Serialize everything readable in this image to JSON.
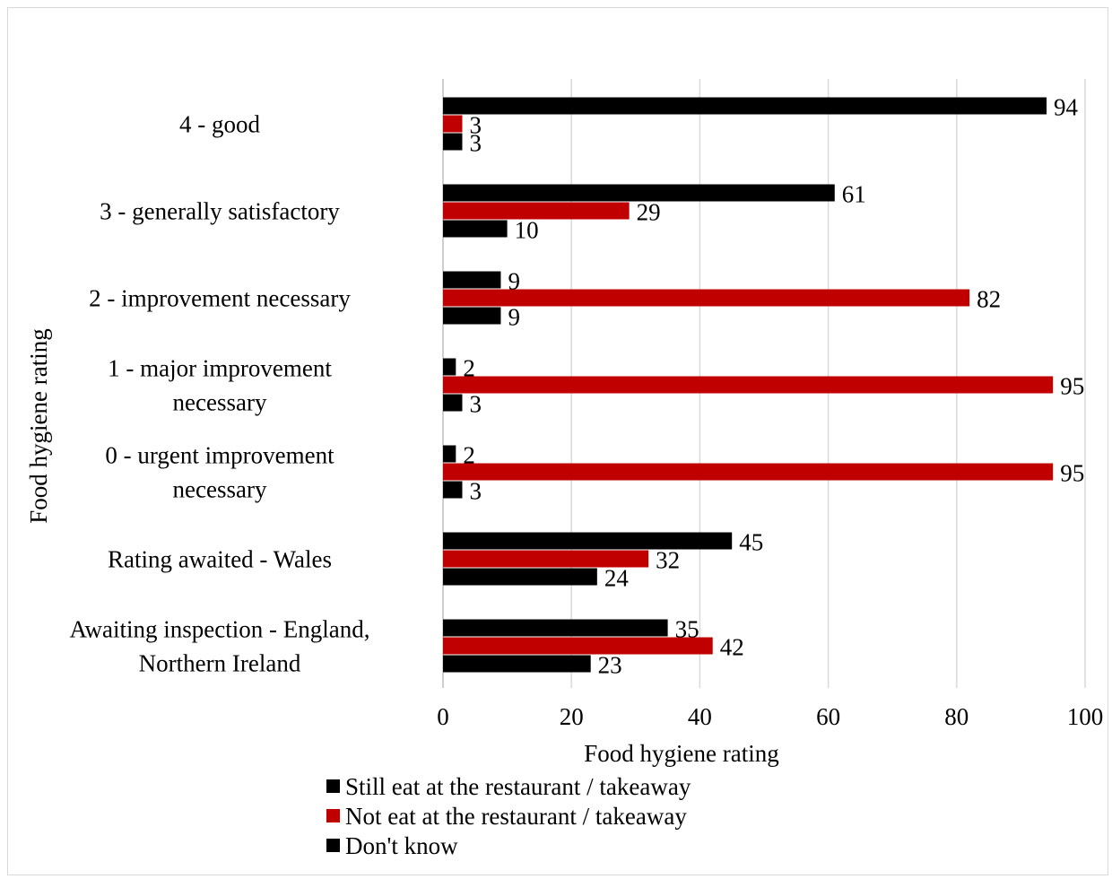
{
  "chart_data": {
    "type": "bar",
    "orientation": "horizontal",
    "categories": [
      [
        "4 - good"
      ],
      [
        "3 - generally satisfactory"
      ],
      [
        "2 - improvement necessary"
      ],
      [
        "1 - major improvement",
        "necessary"
      ],
      [
        "0 - urgent improvement",
        "necessary"
      ],
      [
        "Rating awaited - Wales"
      ],
      [
        "Awaiting inspection - England,",
        "Northern Ireland"
      ]
    ],
    "series": [
      {
        "name": "Still eat at the restaurant / takeaway",
        "color": "#000000",
        "values": [
          94,
          61,
          9,
          2,
          2,
          45,
          35
        ]
      },
      {
        "name": "Not eat at the restaurant / takeaway",
        "color": "#c00000",
        "values": [
          3,
          29,
          82,
          95,
          95,
          32,
          42
        ]
      },
      {
        "name": "Don't know",
        "color": "#000000",
        "values": [
          3,
          10,
          9,
          3,
          3,
          24,
          23
        ]
      }
    ],
    "xlabel": "Food hygiene rating",
    "ylabel": "Food hygiene rating",
    "xlim": [
      0,
      100
    ],
    "xticks": [
      0,
      20,
      40,
      60,
      80,
      100
    ],
    "grid": "vertical",
    "legend": "bottom"
  }
}
